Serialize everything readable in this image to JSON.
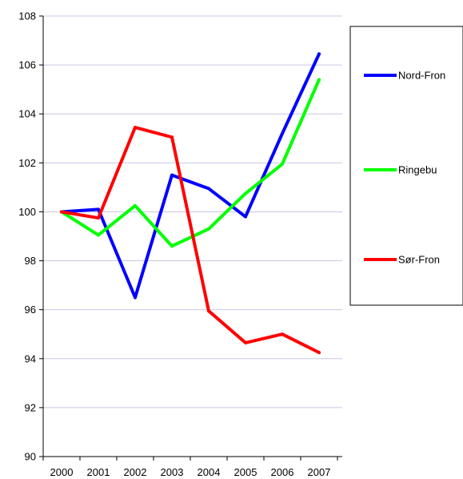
{
  "chart_data": {
    "type": "line",
    "categories": [
      "2000",
      "2001",
      "2002",
      "2003",
      "2004",
      "2005",
      "2006",
      "2007"
    ],
    "ylim": [
      90,
      108
    ],
    "yticks": [
      90,
      92,
      94,
      96,
      98,
      100,
      102,
      104,
      106,
      108
    ],
    "grid": true,
    "legend_position": "right",
    "series": [
      {
        "name": "Nord-Fron",
        "color": "#0000ff",
        "values": [
          100,
          100.1,
          96.5,
          101.5,
          100.95,
          99.8,
          103.2,
          106.45
        ]
      },
      {
        "name": "Ringebu",
        "color": "#00ff00",
        "values": [
          100,
          99.05,
          100.25,
          98.6,
          99.3,
          100.75,
          101.95,
          105.4
        ]
      },
      {
        "name": "Sør-Fron",
        "color": "#ff0000",
        "values": [
          100,
          99.75,
          103.45,
          103.05,
          95.95,
          94.65,
          95.0,
          94.25
        ]
      }
    ]
  }
}
